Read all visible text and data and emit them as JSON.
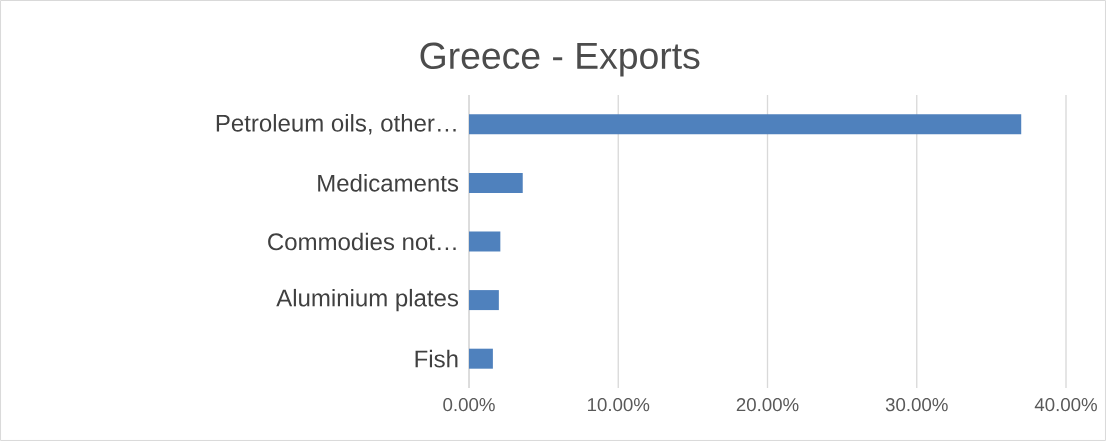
{
  "chart_data": {
    "type": "bar",
    "orientation": "horizontal",
    "title": "Greece - Exports",
    "categories": [
      "Petroleum oils, other…",
      "Medicaments",
      "Commodies not…",
      "Aluminium plates",
      "Fish"
    ],
    "values": [
      37.0,
      3.6,
      2.1,
      2.0,
      1.6
    ],
    "color": "#4f81bd",
    "xlim": [
      0,
      40
    ],
    "xticks": [
      {
        "value": 0,
        "label": "0.00%"
      },
      {
        "value": 10,
        "label": "10.00%"
      },
      {
        "value": 20,
        "label": "20.00%"
      },
      {
        "value": 30,
        "label": "30.00%"
      },
      {
        "value": 40,
        "label": "40.00%"
      }
    ],
    "grid": "x"
  }
}
